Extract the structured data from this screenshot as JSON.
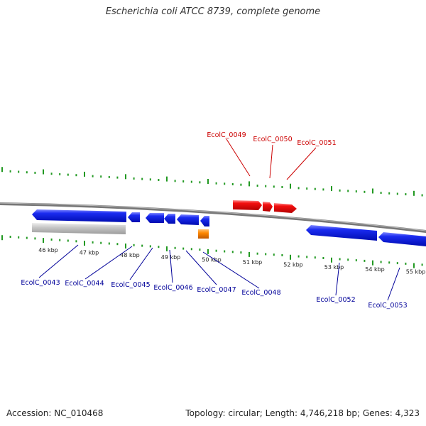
{
  "title": "Escherichia coli ATCC 8739, complete genome",
  "footer": {
    "accession": "Accession: NC_010468",
    "summary": "Topology: circular; Length: 4,746,218 bp; Genes: 4,323"
  },
  "colors": {
    "forward_gene": "#ee1111",
    "reverse_gene": "#1122ee",
    "pseudogene": "#c4c4c4",
    "rna_gene": "#ff8800",
    "ticks": "#229922",
    "backbone": "#777777",
    "forward_label": "#cc0000",
    "reverse_label": "#000099"
  },
  "scale_labels": [
    "46 kbp",
    "47 kbp",
    "48 kbp",
    "49 kbp",
    "50 kbp",
    "51 kbp",
    "52 kbp",
    "53 kbp",
    "54 kbp",
    "55 kbp"
  ],
  "gene_labels_forward": [
    "EcolC_0049",
    "EcolC_0050",
    "EcolC_0051"
  ],
  "gene_labels_reverse": [
    "EcolC_0043",
    "EcolC_0044",
    "EcolC_0045",
    "EcolC_0046",
    "EcolC_0047",
    "EcolC_0048",
    "EcolC_0052",
    "EcolC_0053"
  ]
}
